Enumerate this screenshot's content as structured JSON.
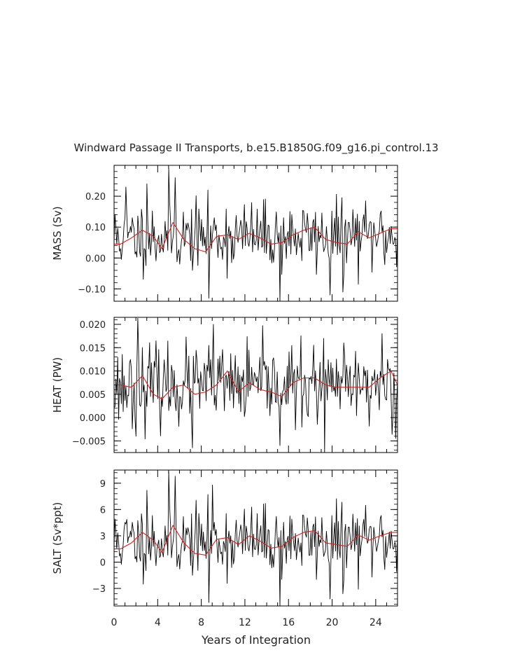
{
  "title": "Windward Passage II Transports, b.e15.B1850G.f09_g16.pi_control.13",
  "xlabel": "Years of Integration",
  "x_ticks": [
    "0",
    "4",
    "8",
    "12",
    "16",
    "20",
    "24"
  ],
  "colors": {
    "raw": "#000000",
    "smooth": "#d81e1e",
    "frame": "#000000"
  },
  "chart_data": [
    {
      "type": "line",
      "panel": "mass",
      "ylabel": "MASS (Sv)",
      "xlim": [
        0,
        26
      ],
      "ylim": [
        -0.14,
        0.3
      ],
      "y_ticks": [
        {
          "v": 0.2,
          "label": "0.20"
        },
        {
          "v": 0.1,
          "label": "0.10"
        },
        {
          "v": 0.0,
          "label": "0.00"
        },
        {
          "v": -0.1,
          "label": "−0.10"
        }
      ],
      "series": [
        {
          "name": "",
          "role": "monthly",
          "seed": 11,
          "mean": 0.07,
          "sd": 0.055,
          "events": [
            {
              "x": 5.0,
              "y": 0.29
            },
            {
              "x": 5.6,
              "y": 0.26
            },
            {
              "x": 8.7,
              "y": -0.13
            },
            {
              "x": 15.2,
              "y": -0.14
            },
            {
              "x": 19.8,
              "y": -0.12
            },
            {
              "x": 21.0,
              "y": -0.11
            },
            {
              "x": 1.1,
              "y": 0.23
            },
            {
              "x": 3.0,
              "y": 0.24
            }
          ]
        },
        {
          "name": "",
          "role": "smoothed",
          "x": [
            0,
            0.6,
            1.6,
            2.6,
            3.6,
            4.4,
            5.4,
            6.4,
            7.4,
            8.4,
            9.4,
            10.4,
            11.4,
            12.4,
            13.4,
            14.4,
            15.4,
            16.4,
            17.4,
            18.4,
            19.4,
            20.4,
            21.4,
            22.4,
            23.4,
            24.4,
            25.4,
            26
          ],
          "y": [
            0.045,
            0.045,
            0.065,
            0.09,
            0.07,
            0.03,
            0.115,
            0.06,
            0.03,
            0.02,
            0.07,
            0.075,
            0.06,
            0.08,
            0.065,
            0.045,
            0.05,
            0.075,
            0.09,
            0.1,
            0.06,
            0.05,
            0.045,
            0.085,
            0.065,
            0.08,
            0.095,
            0.095
          ]
        }
      ]
    },
    {
      "type": "line",
      "panel": "heat",
      "ylabel": "HEAT (PW)",
      "xlim": [
        0,
        26
      ],
      "ylim": [
        -0.0075,
        0.0215
      ],
      "y_ticks": [
        {
          "v": 0.02,
          "label": "0.020"
        },
        {
          "v": 0.015,
          "label": "0.015"
        },
        {
          "v": 0.01,
          "label": "0.010"
        },
        {
          "v": 0.005,
          "label": "0.005"
        },
        {
          "v": 0.0,
          "label": "0.000"
        },
        {
          "v": -0.005,
          "label": "−0.005"
        }
      ],
      "series": [
        {
          "name": "",
          "role": "monthly",
          "seed": 23,
          "mean": 0.0068,
          "sd": 0.0042,
          "events": [
            {
              "x": 2.2,
              "y": 0.0213
            },
            {
              "x": 2.0,
              "y": -0.004
            },
            {
              "x": 7.2,
              "y": -0.0065
            },
            {
              "x": 9.1,
              "y": 0.02
            },
            {
              "x": 15.2,
              "y": -0.006
            },
            {
              "x": 19.3,
              "y": -0.0075
            },
            {
              "x": 24.6,
              "y": 0.018
            }
          ]
        },
        {
          "name": "",
          "role": "smoothed",
          "x": [
            0,
            0.6,
            1.6,
            2.6,
            3.6,
            4.4,
            5.4,
            6.4,
            7.4,
            8.4,
            9.4,
            10.4,
            11.4,
            12.4,
            13.4,
            14.4,
            15.4,
            16.4,
            17.4,
            18.4,
            19.4,
            20.4,
            21.4,
            22.4,
            23.4,
            24.4,
            25.4,
            26
          ],
          "y": [
            0.007,
            0.007,
            0.0065,
            0.009,
            0.005,
            0.004,
            0.0065,
            0.007,
            0.005,
            0.0055,
            0.007,
            0.01,
            0.0055,
            0.0075,
            0.006,
            0.0055,
            0.0045,
            0.0075,
            0.0085,
            0.0085,
            0.007,
            0.0065,
            0.0065,
            0.0065,
            0.0065,
            0.0085,
            0.01,
            0.007
          ]
        }
      ]
    },
    {
      "type": "line",
      "panel": "salt",
      "ylabel": "SALT (Sv*ppt)",
      "xlim": [
        0,
        26
      ],
      "ylim": [
        -5.0,
        10.5
      ],
      "y_ticks": [
        {
          "v": 9,
          "label": "9"
        },
        {
          "v": 6,
          "label": "6"
        },
        {
          "v": 3,
          "label": "3"
        },
        {
          "v": 0,
          "label": "0"
        },
        {
          "v": -3,
          "label": "−3"
        }
      ],
      "series": [
        {
          "name": "",
          "role": "monthly",
          "seed": 11,
          "mean": 2.4,
          "sd": 1.95,
          "events": [
            {
              "x": 5.0,
              "y": 10.3
            },
            {
              "x": 5.6,
              "y": 9.8
            },
            {
              "x": 8.7,
              "y": -4.6
            },
            {
              "x": 15.2,
              "y": -5.0
            },
            {
              "x": 19.8,
              "y": -4.2
            },
            {
              "x": 21.0,
              "y": -3.6
            },
            {
              "x": 3.0,
              "y": 8.2
            },
            {
              "x": 9.0,
              "y": 8.8
            }
          ]
        },
        {
          "name": "",
          "role": "smoothed",
          "x": [
            0,
            0.6,
            1.6,
            2.6,
            3.6,
            4.4,
            5.4,
            6.4,
            7.4,
            8.4,
            9.4,
            10.4,
            11.4,
            12.4,
            13.4,
            14.4,
            15.4,
            16.4,
            17.4,
            18.4,
            19.4,
            20.4,
            21.4,
            22.4,
            23.4,
            24.4,
            25.4,
            26
          ],
          "y": [
            1.5,
            1.5,
            2.2,
            3.4,
            2.5,
            1.1,
            4.2,
            2.2,
            1.0,
            0.8,
            2.6,
            2.8,
            2.0,
            3.0,
            2.4,
            1.6,
            1.8,
            2.8,
            3.4,
            3.6,
            2.2,
            2.0,
            1.8,
            3.1,
            2.5,
            3.0,
            3.4,
            3.4
          ]
        }
      ]
    }
  ]
}
